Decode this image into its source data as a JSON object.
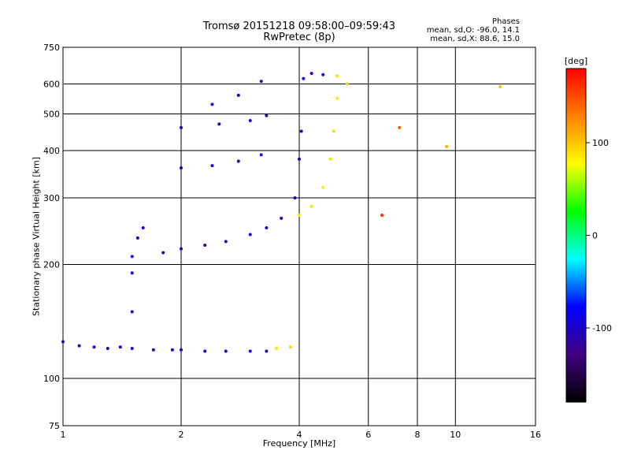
{
  "header": {
    "title_line1": "Tromsø 20151218 09:58:00–09:59:43",
    "title_line2": "RwPretec (8p)"
  },
  "phase_stats": {
    "heading": "Phases",
    "line_o": "mean, sd,O: -96.0, 14.1",
    "line_x": "mean, sd,X: 88.6, 15.0"
  },
  "colorbar": {
    "label": "[deg]",
    "range": [
      -180,
      180
    ],
    "ticks": [
      "100",
      "0",
      "-100"
    ],
    "colors": [
      "#ff0000",
      "#ff8000",
      "#ffff00",
      "#00ff00",
      "#00ffff",
      "#0000ff",
      "#400080",
      "#000000"
    ]
  },
  "chart_data": {
    "type": "scatter",
    "xlabel": "Frequency [MHz]",
    "ylabel": "Stationary phase Virtual Height [km]",
    "xscale": "log",
    "yscale": "log",
    "xlim": [
      1,
      16
    ],
    "ylim": [
      75,
      750
    ],
    "xticks": [
      1,
      2,
      4,
      6,
      8,
      10,
      16
    ],
    "yticks": [
      75,
      100,
      200,
      300,
      400,
      500,
      600,
      750
    ],
    "grid": true,
    "series": [
      {
        "points": [
          [
            1.0,
            125,
            -100
          ],
          [
            1.1,
            122,
            -95
          ],
          [
            1.2,
            121,
            -98
          ],
          [
            1.3,
            120,
            -110
          ],
          [
            1.4,
            121,
            -92
          ],
          [
            1.5,
            120,
            -100
          ],
          [
            1.7,
            119,
            -105
          ],
          [
            1.9,
            119,
            -90
          ],
          [
            2.0,
            119,
            -100
          ],
          [
            2.3,
            118,
            -96
          ],
          [
            2.6,
            118,
            -102
          ],
          [
            3.0,
            118,
            -98
          ],
          [
            3.3,
            118,
            -108
          ],
          [
            1.5,
            150,
            -95
          ],
          [
            1.5,
            190,
            -100
          ],
          [
            1.5,
            210,
            -96
          ],
          [
            1.55,
            235,
            -92
          ],
          [
            1.6,
            250,
            -88
          ],
          [
            1.8,
            215,
            -100
          ],
          [
            2.0,
            220,
            -102
          ],
          [
            2.3,
            225,
            -98
          ],
          [
            2.6,
            230,
            -104
          ],
          [
            3.0,
            240,
            -100
          ],
          [
            3.3,
            250,
            -96
          ],
          [
            3.6,
            265,
            -110
          ],
          [
            3.9,
            300,
            -92
          ],
          [
            4.0,
            380,
            -98
          ],
          [
            4.05,
            450,
            -100
          ],
          [
            4.1,
            620,
            -94
          ],
          [
            4.3,
            640,
            -100
          ],
          [
            4.6,
            635,
            -88
          ],
          [
            2.0,
            360,
            -100
          ],
          [
            2.4,
            365,
            -96
          ],
          [
            2.8,
            375,
            -102
          ],
          [
            3.2,
            390,
            -98
          ],
          [
            2.0,
            460,
            -100
          ],
          [
            2.5,
            470,
            -94
          ],
          [
            3.0,
            480,
            -100
          ],
          [
            3.3,
            495,
            -106
          ],
          [
            2.4,
            530,
            -98
          ],
          [
            2.8,
            560,
            -100
          ],
          [
            3.2,
            610,
            -96
          ],
          [
            3.5,
            120,
            88
          ],
          [
            3.8,
            121,
            92
          ],
          [
            4.0,
            270,
            86
          ],
          [
            4.3,
            285,
            90
          ],
          [
            4.6,
            320,
            84
          ],
          [
            4.8,
            380,
            88
          ],
          [
            4.9,
            450,
            92
          ],
          [
            5.0,
            550,
            86
          ],
          [
            5.0,
            630,
            88
          ],
          [
            5.3,
            600,
            94
          ],
          [
            6.5,
            270,
            160
          ],
          [
            7.2,
            460,
            140
          ],
          [
            9.5,
            410,
            110
          ],
          [
            13.0,
            590,
            100
          ]
        ]
      }
    ]
  }
}
